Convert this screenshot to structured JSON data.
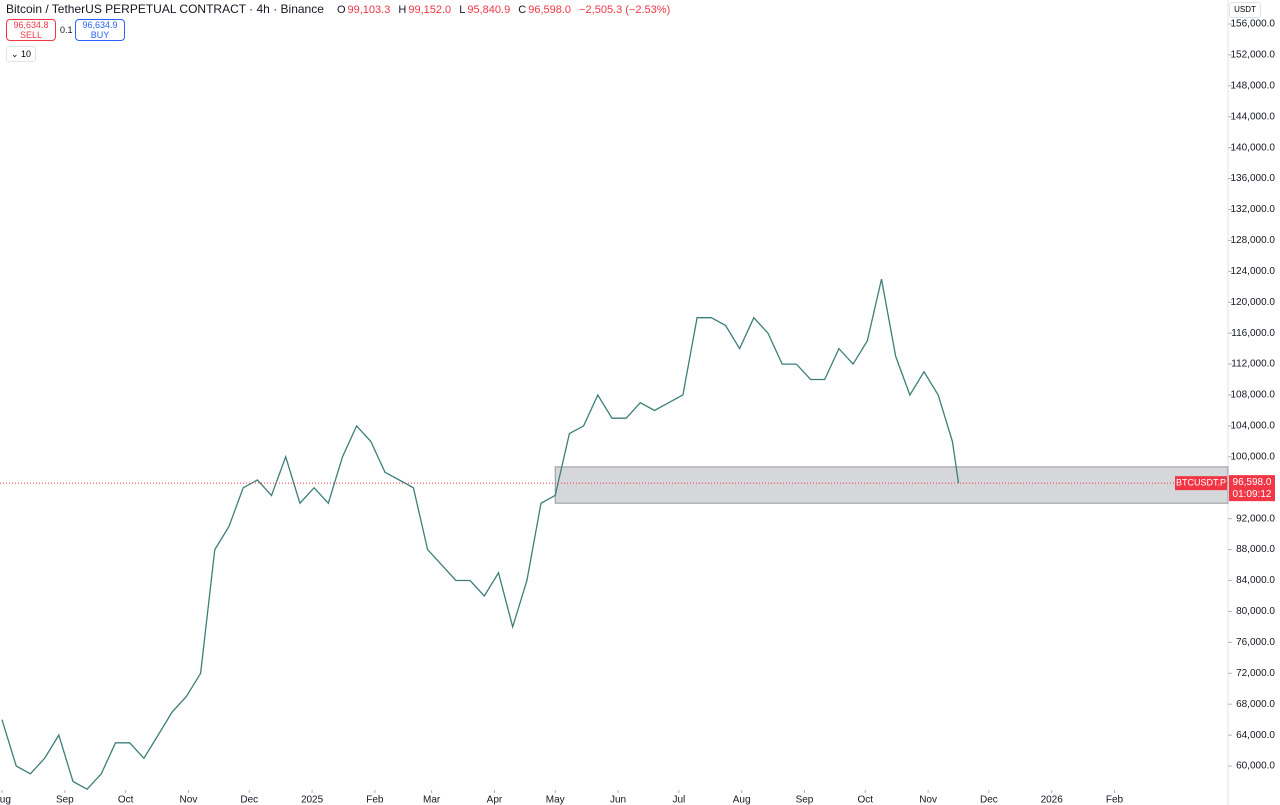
{
  "header": {
    "title": "Bitcoin / TetherUS PERPETUAL CONTRACT · 4h · Binance",
    "ohlc": [
      {
        "label": "O",
        "value": "99,103.3"
      },
      {
        "label": "H",
        "value": "99,152.0"
      },
      {
        "label": "L",
        "value": "95,840.9"
      },
      {
        "label": "C",
        "value": "96,598.0"
      }
    ],
    "change": "−2,505.3 (−2.53%)",
    "sell": {
      "price": "96,634.8",
      "label": "SELL"
    },
    "spread": "0.1",
    "buy": {
      "price": "96,634.9",
      "label": "BUY"
    },
    "indicators": "10",
    "currency": "USDT"
  },
  "chart_data": {
    "type": "line",
    "color": "#3c7f7a",
    "x": [
      0,
      7,
      14,
      21,
      28,
      35,
      42,
      49,
      56,
      63,
      70,
      77,
      84,
      91,
      98,
      105,
      112,
      119,
      126,
      133,
      140,
      147,
      154,
      161,
      168,
      175,
      182,
      189,
      196,
      203,
      210,
      217,
      224,
      231,
      238,
      245,
      252,
      259,
      266,
      273,
      280,
      287,
      294,
      301,
      308,
      315,
      322,
      329,
      336,
      343,
      350,
      357,
      364,
      371,
      378,
      385,
      392,
      399,
      406,
      413,
      420,
      427,
      434,
      441,
      448,
      455,
      462,
      469,
      472
    ],
    "values": [
      66000,
      60000,
      59000,
      61000,
      64000,
      58000,
      57000,
      59000,
      63000,
      63000,
      61000,
      64000,
      67000,
      69000,
      72000,
      88000,
      91000,
      96000,
      97000,
      95000,
      100000,
      94000,
      96000,
      94000,
      100000,
      104000,
      102000,
      98000,
      97000,
      96000,
      88000,
      86000,
      84000,
      84000,
      82000,
      85000,
      78000,
      84000,
      94000,
      95000,
      103000,
      104000,
      108000,
      105000,
      105000,
      107000,
      106000,
      107000,
      108000,
      118000,
      118000,
      117000,
      114000,
      118000,
      116000,
      112000,
      112000,
      110000,
      110000,
      114000,
      112000,
      115000,
      123000,
      113000,
      108000,
      111000,
      108000,
      102000,
      96598
    ],
    "xlim": [
      -1,
      605
    ],
    "xticks": [
      {
        "value": 0,
        "label": "Aug"
      },
      {
        "value": 31,
        "label": "Sep"
      },
      {
        "value": 61,
        "label": "Oct"
      },
      {
        "value": 92,
        "label": "Nov"
      },
      {
        "value": 122,
        "label": "Dec"
      },
      {
        "value": 153,
        "label": "2025"
      },
      {
        "value": 184,
        "label": "Feb"
      },
      {
        "value": 212,
        "label": "Mar"
      },
      {
        "value": 243,
        "label": "Apr"
      },
      {
        "value": 273,
        "label": "May"
      },
      {
        "value": 304,
        "label": "Jun"
      },
      {
        "value": 334,
        "label": "Jul"
      },
      {
        "value": 365,
        "label": "Aug"
      },
      {
        "value": 396,
        "label": "Sep"
      },
      {
        "value": 426,
        "label": "Oct"
      },
      {
        "value": 457,
        "label": "Nov"
      },
      {
        "value": 487,
        "label": "Dec"
      },
      {
        "value": 518,
        "label": "2026"
      },
      {
        "value": 549,
        "label": "Feb"
      }
    ],
    "ylim": [
      56900,
      159100
    ],
    "yticks": [
      {
        "value": 60000,
        "label": "60,000.0"
      },
      {
        "value": 64000,
        "label": "64,000.0"
      },
      {
        "value": 68000,
        "label": "68,000.0"
      },
      {
        "value": 72000,
        "label": "72,000.0"
      },
      {
        "value": 76000,
        "label": "76,000.0"
      },
      {
        "value": 80000,
        "label": "80,000.0"
      },
      {
        "value": 84000,
        "label": "84,000.0"
      },
      {
        "value": 88000,
        "label": "88,000.0"
      },
      {
        "value": 92000,
        "label": "92,000.0"
      },
      {
        "value": 100000,
        "label": "100,000.0"
      },
      {
        "value": 104000,
        "label": "104,000.0"
      },
      {
        "value": 108000,
        "label": "108,000.0"
      },
      {
        "value": 112000,
        "label": "112,000.0"
      },
      {
        "value": 116000,
        "label": "116,000.0"
      },
      {
        "value": 120000,
        "label": "120,000.0"
      },
      {
        "value": 124000,
        "label": "124,000.0"
      },
      {
        "value": 128000,
        "label": "128,000.0"
      },
      {
        "value": 132000,
        "label": "132,000.0"
      },
      {
        "value": 136000,
        "label": "136,000.0"
      },
      {
        "value": 140000,
        "label": "140,000.0"
      },
      {
        "value": 144000,
        "label": "144,000.0"
      },
      {
        "value": 148000,
        "label": "148,000.0"
      },
      {
        "value": 152000,
        "label": "152,000.0"
      },
      {
        "value": 156000,
        "label": "156,000.0"
      }
    ],
    "zone": {
      "from": 273,
      "low": 94000,
      "high": 98700
    },
    "last": {
      "symbol": "BTCUSDT.P",
      "value": 96598,
      "label": "96,598.0",
      "countdown": "01:09:12",
      "color": "#f23645"
    }
  }
}
